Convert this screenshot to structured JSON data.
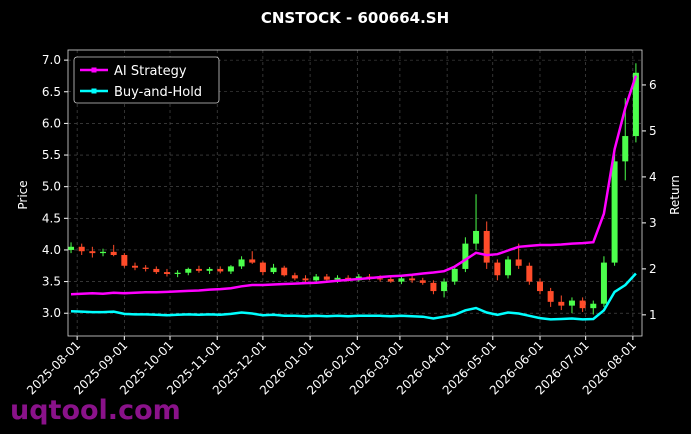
{
  "chart_data": {
    "type": "candlestick",
    "title": "CNSTOCK - 600664.SH",
    "y_label": "Price",
    "y2_label": "Return",
    "watermark": "uqtool.com",
    "x": [
      "2025-07-28",
      "2025-08-04",
      "2025-08-11",
      "2025-08-18",
      "2025-08-25",
      "2025-09-01",
      "2025-09-08",
      "2025-09-15",
      "2025-09-22",
      "2025-09-29",
      "2025-10-06",
      "2025-10-13",
      "2025-10-20",
      "2025-10-27",
      "2025-11-03",
      "2025-11-10",
      "2025-11-17",
      "2025-11-24",
      "2025-12-01",
      "2025-12-08",
      "2025-12-15",
      "2025-12-22",
      "2025-12-29",
      "2026-01-05",
      "2026-01-12",
      "2026-01-19",
      "2026-01-26",
      "2026-02-02",
      "2026-02-09",
      "2026-02-16",
      "2026-02-23",
      "2026-03-02",
      "2026-03-09",
      "2026-03-16",
      "2026-03-23",
      "2026-03-30",
      "2026-04-06",
      "2026-04-13",
      "2026-04-20",
      "2026-04-27",
      "2026-05-04",
      "2026-05-11",
      "2026-05-18",
      "2026-05-25",
      "2026-06-01",
      "2026-06-08",
      "2026-06-15",
      "2026-06-22",
      "2026-06-29",
      "2026-07-06",
      "2026-07-13",
      "2026-07-20",
      "2026-07-27",
      "2026-08-03"
    ],
    "candles": {
      "open": [
        4.0,
        4.05,
        3.98,
        3.95,
        3.97,
        3.92,
        3.75,
        3.72,
        3.7,
        3.65,
        3.62,
        3.64,
        3.7,
        3.67,
        3.7,
        3.66,
        3.74,
        3.85,
        3.8,
        3.65,
        3.72,
        3.6,
        3.55,
        3.52,
        3.58,
        3.53,
        3.56,
        3.52,
        3.58,
        3.55,
        3.54,
        3.5,
        3.55,
        3.52,
        3.48,
        3.35,
        3.5,
        3.7,
        4.1,
        4.3,
        3.8,
        3.6,
        3.85,
        3.75,
        3.5,
        3.35,
        3.18,
        3.12,
        3.2,
        3.08,
        3.15,
        3.8,
        5.4,
        5.8
      ],
      "high": [
        4.12,
        4.1,
        4.05,
        4.02,
        4.08,
        3.95,
        3.8,
        3.76,
        3.74,
        3.7,
        3.68,
        3.72,
        3.75,
        3.73,
        3.74,
        3.76,
        3.9,
        3.98,
        3.82,
        3.78,
        3.75,
        3.64,
        3.6,
        3.62,
        3.62,
        3.6,
        3.6,
        3.62,
        3.62,
        3.6,
        3.58,
        3.58,
        3.6,
        3.56,
        3.52,
        3.55,
        3.75,
        4.2,
        4.88,
        4.45,
        3.85,
        3.9,
        4.1,
        3.8,
        3.55,
        3.4,
        3.28,
        3.25,
        3.25,
        3.2,
        3.9,
        5.6,
        6.4,
        6.95
      ],
      "low": [
        3.95,
        3.92,
        3.88,
        3.9,
        3.9,
        3.72,
        3.68,
        3.66,
        3.62,
        3.58,
        3.57,
        3.6,
        3.64,
        3.62,
        3.63,
        3.62,
        3.7,
        3.78,
        3.6,
        3.62,
        3.58,
        3.52,
        3.48,
        3.5,
        3.5,
        3.48,
        3.5,
        3.5,
        3.52,
        3.5,
        3.48,
        3.46,
        3.48,
        3.45,
        3.3,
        3.25,
        3.45,
        3.65,
        4.0,
        3.7,
        3.52,
        3.55,
        3.7,
        3.45,
        3.3,
        3.1,
        3.05,
        3.0,
        3.02,
        2.98,
        3.1,
        3.75,
        5.1,
        5.7
      ],
      "close": [
        4.05,
        3.98,
        3.95,
        3.97,
        3.92,
        3.75,
        3.72,
        3.7,
        3.65,
        3.62,
        3.64,
        3.7,
        3.67,
        3.7,
        3.66,
        3.74,
        3.85,
        3.8,
        3.65,
        3.72,
        3.6,
        3.55,
        3.52,
        3.58,
        3.53,
        3.56,
        3.52,
        3.58,
        3.55,
        3.54,
        3.5,
        3.55,
        3.52,
        3.48,
        3.35,
        3.5,
        3.7,
        4.1,
        4.3,
        3.8,
        3.6,
        3.85,
        3.75,
        3.5,
        3.35,
        3.18,
        3.12,
        3.2,
        3.08,
        3.15,
        3.8,
        5.4,
        5.8,
        6.8
      ]
    },
    "up_color": "#4cff4c",
    "down_color": "#ff4c2a",
    "series": [
      {
        "name": "AI Strategy",
        "color": "#ff00ff",
        "axis": "y2",
        "values": [
          1.45,
          1.46,
          1.47,
          1.46,
          1.48,
          1.47,
          1.48,
          1.49,
          1.49,
          1.5,
          1.51,
          1.52,
          1.53,
          1.55,
          1.56,
          1.58,
          1.62,
          1.65,
          1.65,
          1.66,
          1.67,
          1.68,
          1.69,
          1.7,
          1.72,
          1.74,
          1.76,
          1.78,
          1.8,
          1.82,
          1.84,
          1.85,
          1.87,
          1.9,
          1.92,
          1.95,
          2.05,
          2.2,
          2.35,
          2.3,
          2.32,
          2.4,
          2.48,
          2.5,
          2.52,
          2.52,
          2.53,
          2.55,
          2.56,
          2.58,
          3.2,
          4.6,
          5.5,
          6.2
        ]
      },
      {
        "name": "Buy-and-Hold",
        "color": "#00ffff",
        "axis": "y2",
        "values": [
          1.08,
          1.07,
          1.06,
          1.06,
          1.07,
          1.02,
          1.01,
          1.01,
          1.0,
          0.99,
          1.0,
          1.01,
          1.0,
          1.01,
          1.0,
          1.02,
          1.05,
          1.03,
          0.99,
          1.0,
          0.98,
          0.98,
          0.97,
          0.98,
          0.97,
          0.98,
          0.97,
          0.98,
          0.98,
          0.98,
          0.97,
          0.98,
          0.97,
          0.96,
          0.92,
          0.96,
          1.0,
          1.1,
          1.15,
          1.05,
          1.0,
          1.05,
          1.03,
          0.98,
          0.93,
          0.9,
          0.91,
          0.92,
          0.9,
          0.91,
          1.1,
          1.5,
          1.65,
          1.9
        ]
      }
    ],
    "xlim": [
      "2025-07-26",
      "2026-08-07"
    ],
    "xticks": [
      "2025-08-01",
      "2025-09-01",
      "2025-10-01",
      "2025-11-01",
      "2025-12-01",
      "2026-01-01",
      "2026-02-01",
      "2026-03-01",
      "2026-04-01",
      "2026-05-01",
      "2026-06-01",
      "2026-07-01",
      "2026-08-01"
    ],
    "ylim": [
      2.64,
      7.16
    ],
    "yticks": [
      {
        "value": 3,
        "label": "3.0"
      },
      3.5,
      {
        "value": 4,
        "label": "4.0"
      },
      4.5,
      {
        "value": 5,
        "label": "5.0"
      },
      5.5,
      {
        "value": 6,
        "label": "6.0"
      },
      6.5,
      {
        "value": 7,
        "label": "7.0"
      }
    ],
    "y2lim": [
      0.54,
      6.76
    ],
    "y2ticks": [
      1,
      2,
      3,
      4,
      5,
      6
    ],
    "grid": true,
    "legend": "upper left"
  }
}
